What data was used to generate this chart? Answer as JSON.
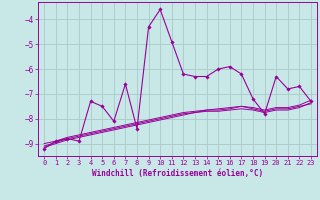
{
  "xlabel": "Windchill (Refroidissement éolien,°C)",
  "bg_color": "#c8e8e8",
  "grid_color": "#aacaca",
  "line_color": "#990099",
  "x_hours": [
    0,
    1,
    2,
    3,
    4,
    5,
    6,
    7,
    8,
    9,
    10,
    11,
    12,
    13,
    14,
    15,
    16,
    17,
    18,
    19,
    20,
    21,
    22,
    23
  ],
  "series1": [
    -9.2,
    -8.9,
    -8.8,
    -8.9,
    -7.3,
    -7.5,
    -8.1,
    -6.6,
    -8.4,
    -4.3,
    -3.6,
    -4.9,
    -6.2,
    -6.3,
    -6.3,
    -6.0,
    -5.9,
    -6.2,
    -7.2,
    -7.8,
    -6.3,
    -6.8,
    -6.7,
    -7.3
  ],
  "series2": [
    -9.15,
    -9.0,
    -8.85,
    -8.75,
    -8.65,
    -8.55,
    -8.45,
    -8.35,
    -8.25,
    -8.15,
    -8.05,
    -7.95,
    -7.85,
    -7.75,
    -7.65,
    -7.65,
    -7.6,
    -7.5,
    -7.6,
    -7.7,
    -7.6,
    -7.6,
    -7.5,
    -7.4
  ],
  "series3": [
    -9.1,
    -8.95,
    -8.8,
    -8.7,
    -8.6,
    -8.5,
    -8.4,
    -8.3,
    -8.2,
    -8.1,
    -8.0,
    -7.9,
    -7.8,
    -7.75,
    -7.7,
    -7.7,
    -7.65,
    -7.6,
    -7.65,
    -7.75,
    -7.65,
    -7.65,
    -7.55,
    -7.35
  ],
  "series4": [
    -9.0,
    -8.9,
    -8.75,
    -8.65,
    -8.55,
    -8.45,
    -8.35,
    -8.25,
    -8.15,
    -8.05,
    -7.95,
    -7.85,
    -7.75,
    -7.7,
    -7.65,
    -7.6,
    -7.55,
    -7.5,
    -7.55,
    -7.65,
    -7.55,
    -7.55,
    -7.45,
    -7.25
  ],
  "ylim": [
    -9.5,
    -3.3
  ],
  "yticks": [
    -9,
    -8,
    -7,
    -6,
    -5,
    -4
  ],
  "xticks": [
    0,
    1,
    2,
    3,
    4,
    5,
    6,
    7,
    8,
    9,
    10,
    11,
    12,
    13,
    14,
    15,
    16,
    17,
    18,
    19,
    20,
    21,
    22,
    23
  ]
}
